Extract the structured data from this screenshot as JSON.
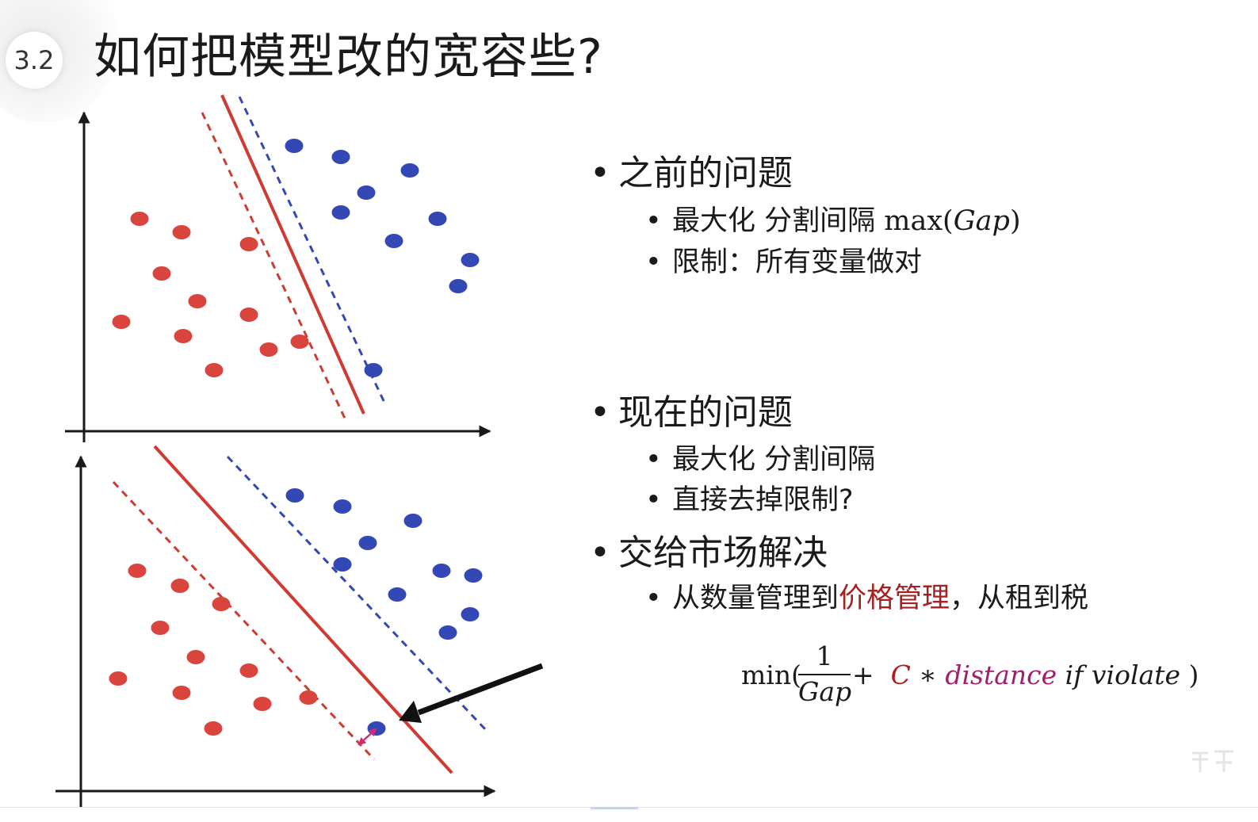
{
  "slide": {
    "section_number": "3.2",
    "title": "如何把模型改的宽容些?"
  },
  "bullets": {
    "before": {
      "heading": "之前的问题",
      "items": [
        {
          "text": "最大化 分割间隔 ",
          "math_fn": "max(",
          "math_var": "Gap",
          "math_close": ")"
        },
        {
          "text": "限制：所有变量做对"
        }
      ]
    },
    "now": {
      "heading": "现在的问题",
      "items": [
        {
          "text": "最大化 分割间隔"
        },
        {
          "text": "直接去掉限制?"
        }
      ]
    },
    "market": {
      "heading": "交给市场解决",
      "item": {
        "prefix": "从数量管理到",
        "highlight": "价格管理",
        "suffix": "，从租到税"
      }
    }
  },
  "formula": {
    "fn": "min(",
    "numerator": "1",
    "denominator": "Gap",
    "plus": "+",
    "c": "C",
    "times": "∗",
    "distance": "distance",
    "condition": "if violate",
    "close": ")"
  },
  "colors": {
    "red_class": "#d9443c",
    "blue_class": "#3448b5",
    "boundary": "#cf3a33",
    "margin_red": "#cf3a33",
    "margin_blue": "#3448b5",
    "axis": "#1a1a1a",
    "violation_arrow": "#d4287a",
    "highlight_text": "#a52020"
  },
  "icons": {
    "axis_arrow": "arrow-head",
    "callout_arrow": "black-arrow-icon"
  }
}
